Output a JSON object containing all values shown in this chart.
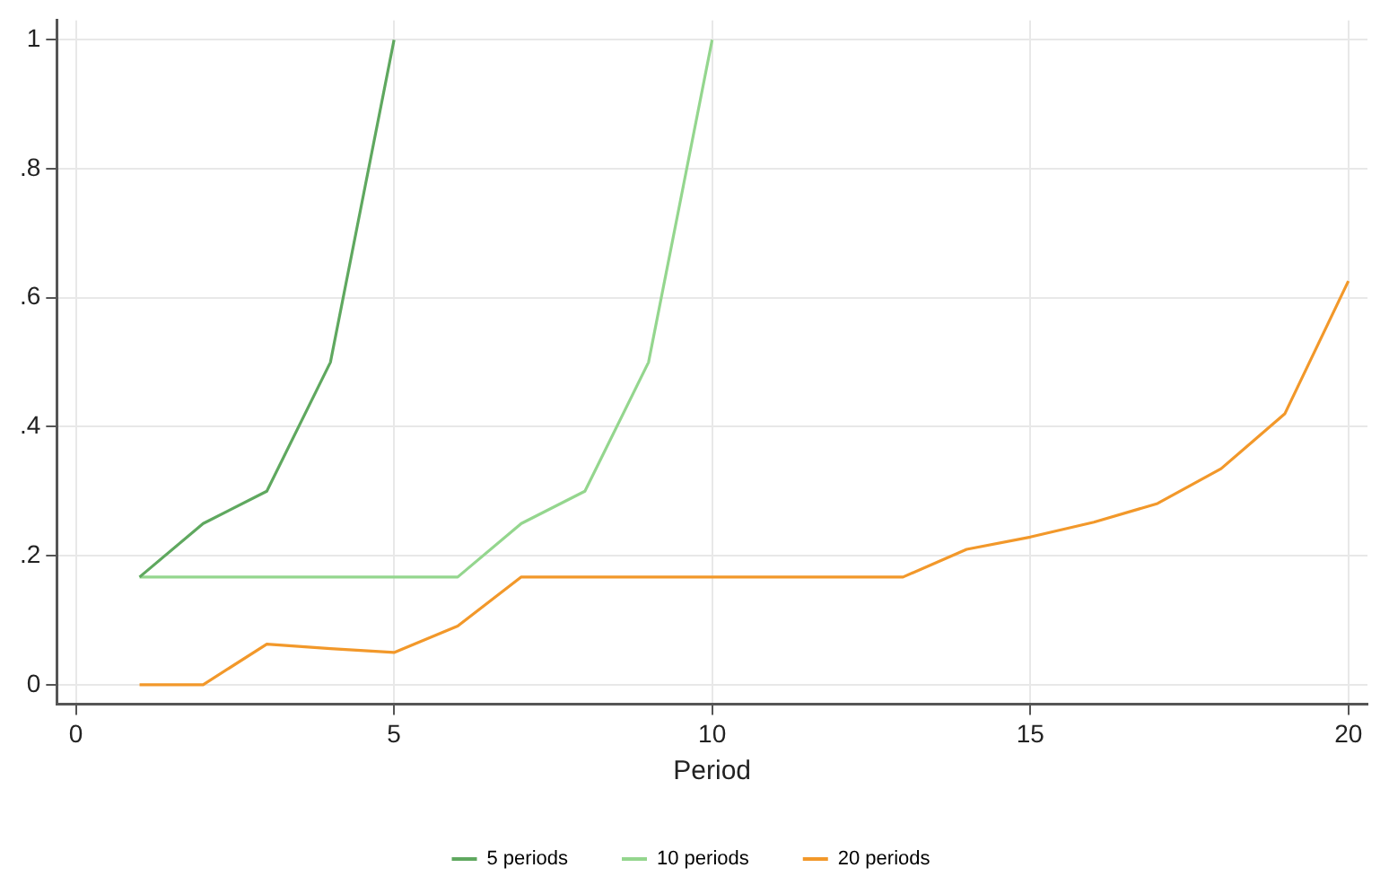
{
  "chart_data": {
    "type": "line",
    "xlabel": "Period",
    "x": [
      1,
      2,
      3,
      4,
      5,
      6,
      7,
      8,
      9,
      10,
      11,
      12,
      13,
      14,
      15,
      16,
      17,
      18,
      19,
      20
    ],
    "series": [
      {
        "name": "5 periods",
        "color": "#5fa85f",
        "values": [
          0.167,
          0.25,
          0.3,
          0.5,
          1,
          null,
          null,
          null,
          null,
          null,
          null,
          null,
          null,
          null,
          null,
          null,
          null,
          null,
          null,
          null
        ]
      },
      {
        "name": "10 periods",
        "color": "#94d68e",
        "values": [
          0.167,
          0.167,
          0.167,
          0.167,
          0.167,
          0.167,
          0.25,
          0.3,
          0.5,
          1,
          null,
          null,
          null,
          null,
          null,
          null,
          null,
          null,
          null,
          null
        ]
      },
      {
        "name": "20 periods",
        "color": "#f2982a",
        "values": [
          0,
          0,
          0.063,
          0.056,
          0.05,
          0.091,
          0.167,
          0.167,
          0.167,
          0.167,
          0.167,
          0.167,
          0.167,
          0.21,
          0.229,
          0.252,
          0.281,
          0.335,
          0.42,
          0.626
        ]
      }
    ],
    "xlim": [
      -0.3,
      20.3
    ],
    "xticks": [
      0,
      5,
      10,
      15,
      20
    ],
    "ylim": [
      -0.03,
      1.03
    ],
    "yticks": [
      {
        "value": 0,
        "label": "0"
      },
      {
        "value": 0.2,
        "label": ".2"
      },
      {
        "value": 0.4,
        "label": ".4"
      },
      {
        "value": 0.6,
        "label": ".6"
      },
      {
        "value": 0.8,
        "label": ".8"
      },
      {
        "value": 1,
        "label": "1"
      }
    ],
    "grid": true,
    "legend": "bottom",
    "marker": "none",
    "line_style": "solid"
  }
}
